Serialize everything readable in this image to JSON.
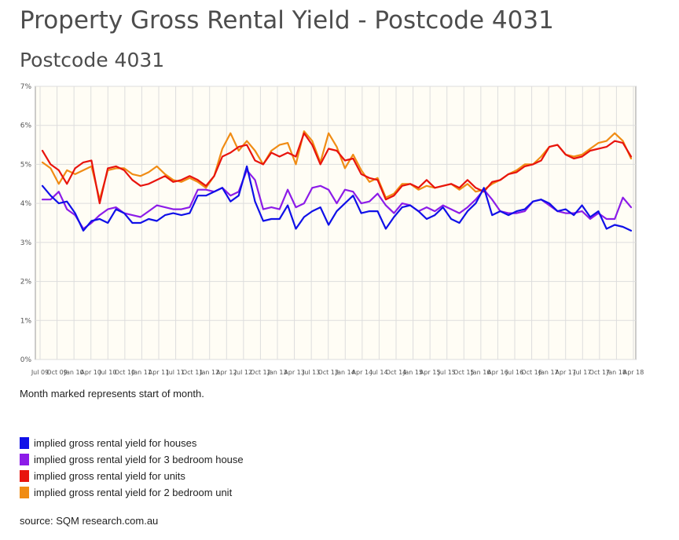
{
  "page": {
    "title": "Property Gross Rental Yield - Postcode 4031",
    "note": "Month marked represents start of month.",
    "source": "source: SQM research.com.au"
  },
  "colors": {
    "houses": "#1010e8",
    "three_bed_house": "#8c1ce8",
    "units": "#e8140e",
    "two_bed_unit": "#f08c14",
    "plot_bg": "#fffdf5",
    "grid": "#dddddd"
  },
  "legend": [
    {
      "label": "implied gross rental yield for houses",
      "color": "#1010e8"
    },
    {
      "label": "implied gross rental yield for 3 bedroom house",
      "color": "#8c1ce8"
    },
    {
      "label": "implied gross rental yield for units",
      "color": "#e8140e"
    },
    {
      "label": "implied gross rental yield for 2 bedroom unit",
      "color": "#f08c14"
    }
  ],
  "chart_data": {
    "type": "line",
    "title": "Postcode 4031",
    "ylim": [
      0,
      7
    ],
    "y_ticks": [
      "0%",
      "1%",
      "2%",
      "3%",
      "4%",
      "5%",
      "6%",
      "7%"
    ],
    "x_ticks": [
      "Jul 09",
      "Oct 09",
      "Jan 10",
      "Apr 10",
      "Jul 10",
      "Oct 10",
      "Jan 11",
      "Apr 11",
      "Jul 11",
      "Oct 11",
      "Jan 12",
      "Apr 12",
      "Jul 12",
      "Oct 12",
      "Jan 13",
      "Apr 13",
      "Jul 13",
      "Oct 13",
      "Jan 14",
      "Apr 14",
      "Jul 14",
      "Oct 14",
      "Jan 15",
      "Apr 15",
      "Jul 15",
      "Oct 15",
      "Jan 16",
      "Apr 16",
      "Jul 16",
      "Oct 16",
      "Jan 17",
      "Apr 17",
      "Jul 17",
      "Oct 17",
      "Jan 18",
      "Apr 18"
    ],
    "grid": true,
    "series": [
      {
        "name": "implied gross rental yield for houses",
        "color": "#1010e8",
        "values": [
          4.45,
          4.2,
          4.0,
          4.05,
          3.75,
          3.3,
          3.55,
          3.6,
          3.5,
          3.85,
          3.75,
          3.5,
          3.5,
          3.6,
          3.55,
          3.7,
          3.75,
          3.7,
          3.75,
          4.2,
          4.2,
          4.3,
          4.4,
          4.05,
          4.2,
          4.95,
          4.05,
          3.55,
          3.6,
          3.6,
          3.95,
          3.35,
          3.65,
          3.8,
          3.9,
          3.45,
          3.8,
          4.0,
          4.2,
          3.75,
          3.8,
          3.8,
          3.35,
          3.65,
          3.9,
          3.95,
          3.8,
          3.6,
          3.7,
          3.9,
          3.6,
          3.5,
          3.8,
          4.0,
          4.4,
          3.7,
          3.8,
          3.7,
          3.8,
          3.85,
          4.05,
          4.1,
          4.0,
          3.8,
          3.85,
          3.7,
          3.95,
          3.65,
          3.8,
          3.35,
          3.45,
          3.4,
          3.3
        ]
      },
      {
        "name": "implied gross rental yield for 3 bedroom house",
        "color": "#8c1ce8",
        "values": [
          4.1,
          4.1,
          4.3,
          3.85,
          3.7,
          3.35,
          3.5,
          3.7,
          3.85,
          3.9,
          3.75,
          3.7,
          3.65,
          3.8,
          3.95,
          3.9,
          3.85,
          3.85,
          3.9,
          4.35,
          4.35,
          4.3,
          4.4,
          4.2,
          4.3,
          4.85,
          4.6,
          3.85,
          3.9,
          3.85,
          4.35,
          3.9,
          4.0,
          4.4,
          4.45,
          4.35,
          4.0,
          4.35,
          4.3,
          4.0,
          4.05,
          4.25,
          3.95,
          3.75,
          4.0,
          3.95,
          3.8,
          3.9,
          3.8,
          3.95,
          3.85,
          3.75,
          3.9,
          4.1,
          4.35,
          4.1,
          3.8,
          3.75,
          3.75,
          3.8,
          4.05,
          4.1,
          3.95,
          3.8,
          3.75,
          3.75,
          3.8,
          3.6,
          3.75,
          3.6,
          3.6,
          4.15,
          3.9
        ]
      },
      {
        "name": "implied gross rental yield for units",
        "color": "#e8140e",
        "values": [
          5.35,
          5.0,
          4.85,
          4.5,
          4.9,
          5.05,
          5.1,
          4.0,
          4.9,
          4.95,
          4.85,
          4.6,
          4.45,
          4.5,
          4.6,
          4.7,
          4.55,
          4.6,
          4.7,
          4.6,
          4.45,
          4.7,
          5.2,
          5.3,
          5.45,
          5.5,
          5.1,
          5.0,
          5.3,
          5.2,
          5.3,
          5.2,
          5.8,
          5.5,
          5.0,
          5.4,
          5.35,
          5.1,
          5.15,
          4.75,
          4.65,
          4.6,
          4.1,
          4.2,
          4.45,
          4.5,
          4.4,
          4.6,
          4.4,
          4.45,
          4.5,
          4.4,
          4.6,
          4.4,
          4.3,
          4.55,
          4.6,
          4.75,
          4.8,
          4.95,
          5.0,
          5.1,
          5.45,
          5.5,
          5.25,
          5.15,
          5.2,
          5.35,
          5.4,
          5.45,
          5.6,
          5.55,
          5.2
        ]
      },
      {
        "name": "implied gross rental yield for 2 bedroom unit",
        "color": "#f08c14",
        "values": [
          5.05,
          4.9,
          4.5,
          4.85,
          4.75,
          4.85,
          4.95,
          4.1,
          4.85,
          4.9,
          4.9,
          4.75,
          4.7,
          4.8,
          4.95,
          4.75,
          4.6,
          4.55,
          4.65,
          4.55,
          4.4,
          4.7,
          5.4,
          5.8,
          5.35,
          5.6,
          5.35,
          5.0,
          5.35,
          5.5,
          5.55,
          5.0,
          5.85,
          5.6,
          5.05,
          5.8,
          5.45,
          4.9,
          5.25,
          4.85,
          4.55,
          4.65,
          4.15,
          4.25,
          4.5,
          4.5,
          4.35,
          4.45,
          4.4,
          4.45,
          4.5,
          4.35,
          4.5,
          4.3,
          4.35,
          4.5,
          4.6,
          4.75,
          4.85,
          5.0,
          5.0,
          5.2,
          5.45,
          5.5,
          5.25,
          5.2,
          5.25,
          5.4,
          5.55,
          5.6,
          5.8,
          5.6,
          5.15
        ]
      }
    ]
  }
}
